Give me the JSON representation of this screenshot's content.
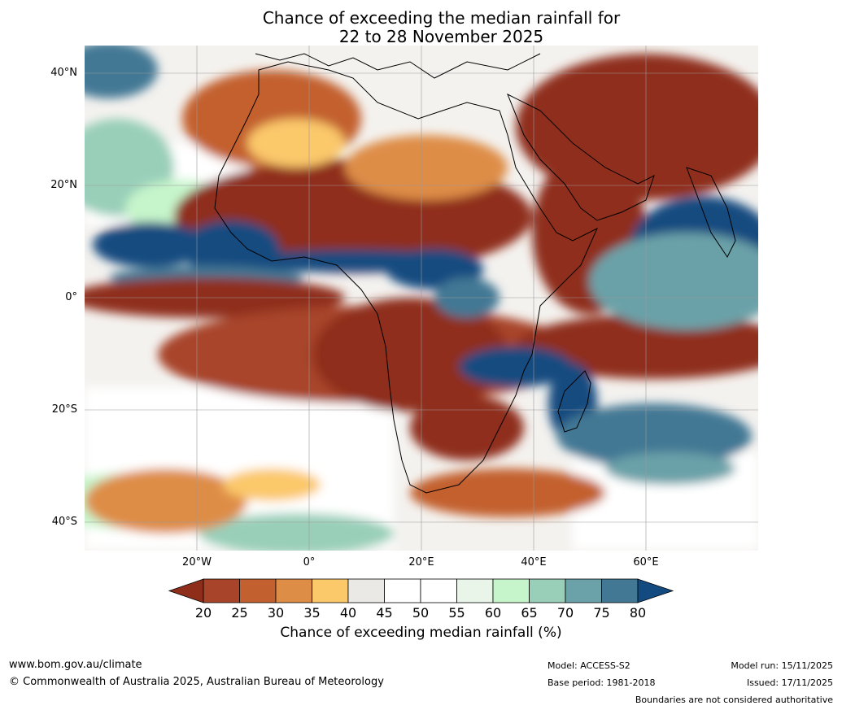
{
  "title": {
    "line1": "Chance of exceeding the median rainfall for",
    "line2": "22 to 28 November 2025"
  },
  "axes": {
    "lat_labels": [
      "40°N",
      "20°N",
      "0°",
      "20°S",
      "40°S"
    ],
    "lon_labels": [
      "20°W",
      "0°",
      "20°E",
      "40°E",
      "60°E"
    ]
  },
  "colorbar": {
    "ticks": [
      "20",
      "25",
      "30",
      "35",
      "40",
      "45",
      "50",
      "55",
      "60",
      "65",
      "70",
      "75",
      "80"
    ],
    "label": "Chance of exceeding median rainfall (%)",
    "colors": [
      "#8f2d1b",
      "#a8442a",
      "#c3602f",
      "#de8d47",
      "#fbc86a",
      "#ebe9e5",
      "#ffffff",
      "#ffffff",
      "#e8f5e8",
      "#c6f5cb",
      "#99cfb9",
      "#6ba1a8",
      "#437894",
      "#134b80"
    ]
  },
  "footer": {
    "url": "www.bom.gov.au/climate",
    "copyright": "© Commonwealth of Australia 2025, Australian Bureau of Meteorology",
    "model": "Model: ACCESS-S2",
    "base_period": "Base period: 1981-2018",
    "model_run": "Model run: 15/11/2025",
    "issued": "Issued: 17/11/2025",
    "disclaimer": "Boundaries are not considered authoritative"
  }
}
